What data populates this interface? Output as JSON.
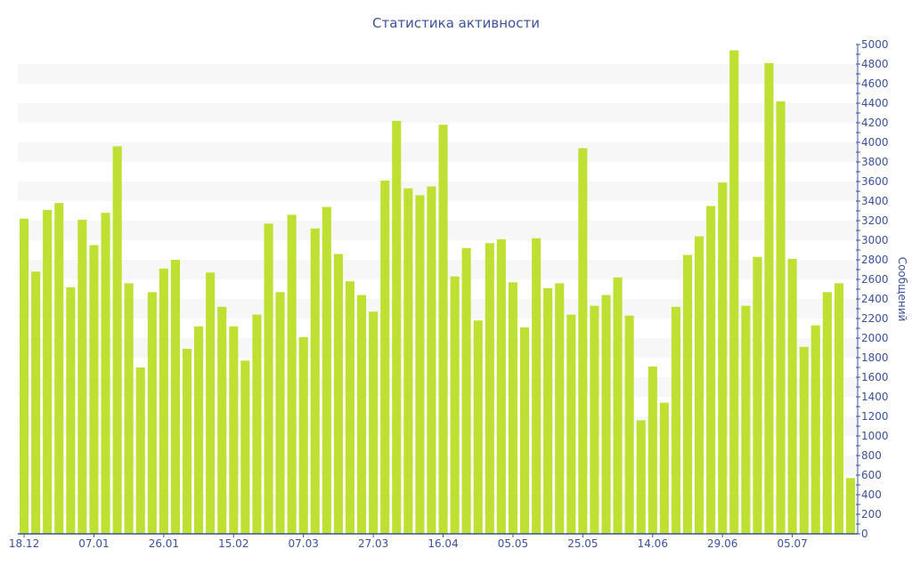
{
  "chart_data": {
    "type": "bar",
    "title": "Статистика активности",
    "xlabel": "",
    "ylabel": "Сообщений",
    "ylim": [
      0,
      5000
    ],
    "y_ticks": [
      0,
      200,
      400,
      600,
      800,
      1000,
      1200,
      1400,
      1600,
      1800,
      2000,
      2200,
      2400,
      2600,
      2800,
      3000,
      3200,
      3400,
      3600,
      3800,
      4000,
      4200,
      4400,
      4600,
      4800,
      5000
    ],
    "x_tick_labels": [
      {
        "bar_index": 0,
        "label": "18.12"
      },
      {
        "bar_index": 6,
        "label": "07.01"
      },
      {
        "bar_index": 12,
        "label": "26.01"
      },
      {
        "bar_index": 18,
        "label": "15.02"
      },
      {
        "bar_index": 24,
        "label": "07.03"
      },
      {
        "bar_index": 30,
        "label": "27.03"
      },
      {
        "bar_index": 36,
        "label": "16.04"
      },
      {
        "bar_index": 42,
        "label": "05.05"
      },
      {
        "bar_index": 48,
        "label": "25.05"
      },
      {
        "bar_index": 54,
        "label": "14.06"
      },
      {
        "bar_index": 60,
        "label": "29.06"
      },
      {
        "bar_index": 66,
        "label": "05.07"
      }
    ],
    "y_axis_position": "right",
    "grid": "alternating horizontal bands",
    "bar_color": "#bde032",
    "axis_color": "#3d5198",
    "values": [
      3220,
      2680,
      3310,
      3380,
      2520,
      3210,
      2950,
      3280,
      3960,
      2560,
      1700,
      2470,
      2710,
      2800,
      1890,
      2120,
      2670,
      2320,
      2120,
      1770,
      2240,
      3170,
      2470,
      3260,
      2010,
      3120,
      3340,
      2860,
      2580,
      2440,
      2270,
      3610,
      4220,
      3530,
      3460,
      3550,
      4180,
      2630,
      2920,
      2180,
      2970,
      3010,
      2570,
      2110,
      3020,
      2510,
      2560,
      2240,
      3940,
      2330,
      2440,
      2620,
      2230,
      1160,
      1710,
      1340,
      2320,
      2850,
      3040,
      3350,
      3590,
      4940,
      2330,
      2830,
      4810,
      4420,
      2810,
      1910,
      2130,
      2470,
      2560,
      570
    ]
  }
}
